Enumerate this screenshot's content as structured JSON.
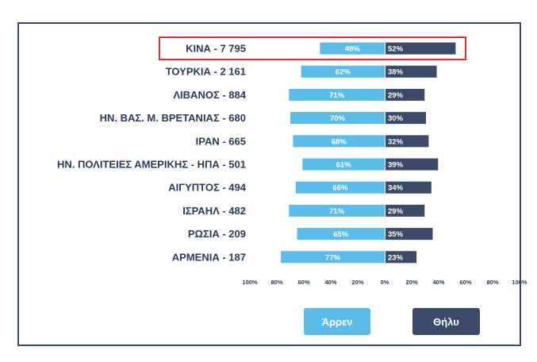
{
  "chart_data": {
    "type": "bar",
    "categories": [
      "ΚΙΝΑ - 7 795",
      "ΤΟΥΡΚΙΑ - 2 161",
      "ΛΙΒΑΝΟΣ - 884",
      "ΗΝ. ΒΑΣ. Μ. ΒΡΕΤΑΝΙΑΣ - 680",
      "ΙΡΑΝ - 665",
      "ΗΝ. ΠΟΛΙΤΕΙΕΣ ΑΜΕΡΙΚΗΣ - ΗΠΑ - 501",
      "ΑΙΓΥΠΤΟΣ - 494",
      "ΙΣΡΑΗΛ - 482",
      "ΡΩΣΙΑ - 209",
      "ΑΡΜΕΝΙΑ - 187"
    ],
    "series": [
      {
        "name": "Άρρεν",
        "color": "#5bbcea",
        "values": [
          48,
          62,
          71,
          70,
          68,
          61,
          66,
          71,
          65,
          77
        ],
        "labels": [
          "48%",
          "62%",
          "71%",
          "70%",
          "68%",
          "61%",
          "66%",
          "71%",
          "65%",
          "77%"
        ]
      },
      {
        "name": "Θήλυ",
        "color": "#3b4a68",
        "values": [
          52,
          38,
          29,
          30,
          32,
          39,
          34,
          29,
          35,
          23
        ],
        "labels": [
          "52%",
          "38%",
          "29%",
          "30%",
          "32%",
          "39%",
          "34%",
          "29%",
          "35%",
          "23%"
        ]
      }
    ],
    "x_ticks": [
      "100%",
      "80%",
      "60%",
      "40%",
      "20%",
      "0%",
      "20%",
      "40%",
      "60%",
      "80%",
      "100%"
    ],
    "xlim": [
      -100,
      100
    ],
    "highlighted_category": "ΚΙΝΑ - 7 795",
    "highlight_color": "#d9322e",
    "grid": false,
    "legend_position": "bottom"
  },
  "legend": {
    "male_label": "Άρρεν",
    "female_label": "Θήλυ"
  }
}
